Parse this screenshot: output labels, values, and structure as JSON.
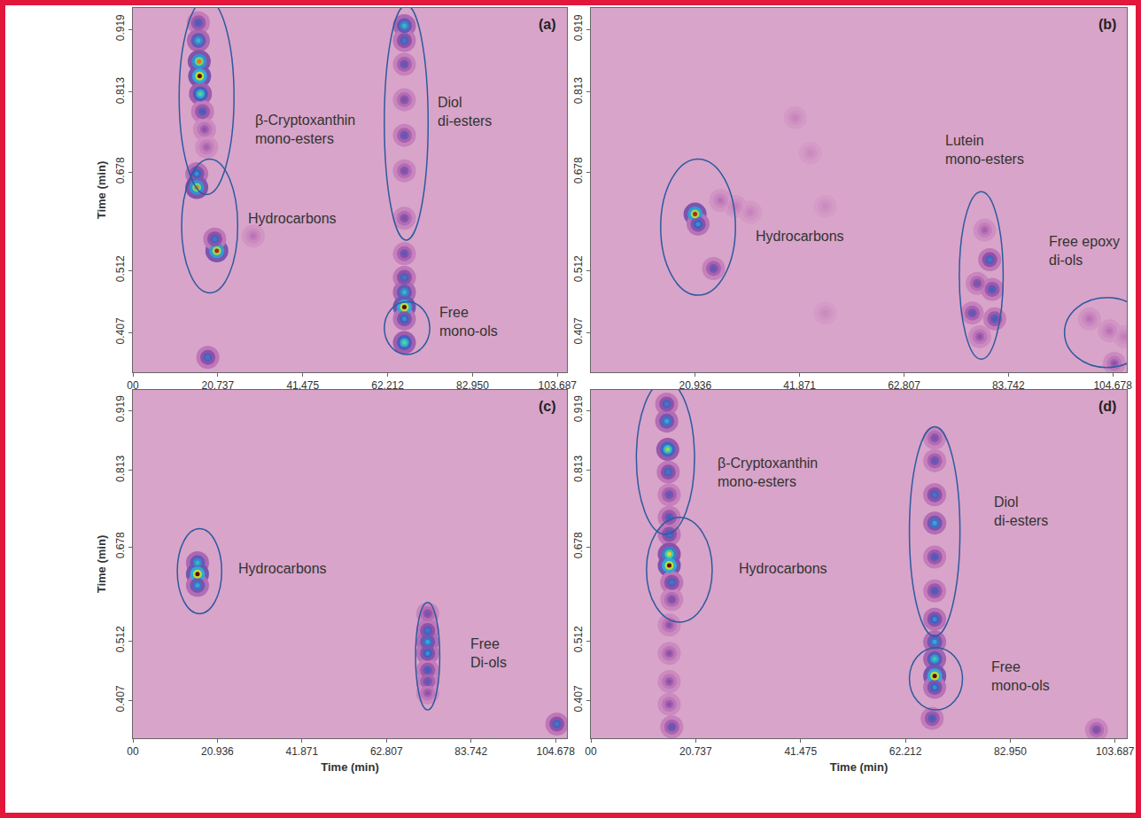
{
  "chart_data": [
    {
      "type": "scatter",
      "title": "(a)",
      "y_label": "Time (min)",
      "xlim": [
        0,
        106
      ],
      "xticks": [
        {
          "value": 0,
          "label": "00"
        },
        20.737,
        41.475,
        62.212,
        {
          "value": 82.95,
          "label": "82.950"
        },
        103.687
      ],
      "ylim": [
        0.34,
        0.955
      ],
      "yticks": [
        0.407,
        0.512,
        0.678,
        0.813,
        0.919
      ],
      "grid": false,
      "zlim": [
        0,
        100
      ],
      "spots": {
        "x": [
          16,
          16,
          16.2,
          16.3,
          16.5,
          17,
          17.5,
          18,
          15.6,
          15.6,
          20.5,
          20,
          18.3,
          29.4,
          66.3,
          66.3,
          66.3,
          66.3,
          66.3,
          66.3,
          66.3,
          66.3,
          66.3,
          66.3,
          66.3,
          66.3,
          66.3
        ],
        "y": [
          0.93,
          0.9,
          0.865,
          0.84,
          0.81,
          0.78,
          0.75,
          0.72,
          0.675,
          0.652,
          0.545,
          0.565,
          0.365,
          0.57,
          0.925,
          0.9,
          0.86,
          0.8,
          0.74,
          0.68,
          0.6,
          0.54,
          0.5,
          0.475,
          0.45,
          0.43,
          0.39
        ],
        "z": [
          40,
          60,
          90,
          100,
          70,
          40,
          25,
          20,
          50,
          90,
          95,
          45,
          45,
          15,
          60,
          45,
          35,
          30,
          35,
          30,
          30,
          35,
          45,
          60,
          100,
          50,
          70
        ]
      },
      "regions": [
        {
          "label": "β-Cryptoxanthin mono-esters",
          "x": [
            11.3,
            24.7
          ],
          "y": [
            0.64,
            0.97
          ],
          "label_x": 42,
          "label_y": 0.75
        },
        {
          "label": "Hydrocarbons",
          "x": [
            11.9,
            25.6
          ],
          "y": [
            0.474,
            0.7
          ],
          "label_x": 39,
          "label_y": 0.6
        },
        {
          "label": "Diol di-esters",
          "x": [
            61.4,
            72.1
          ],
          "y": [
            0.563,
            0.96
          ],
          "label_x": 81,
          "label_y": 0.78
        },
        {
          "label": "Free mono-ols",
          "x": [
            61.4,
            72.5
          ],
          "y": [
            0.37,
            0.459
          ],
          "label_x": 82,
          "label_y": 0.425
        }
      ]
    },
    {
      "type": "scatter",
      "title": "(b)",
      "xlim": [
        0,
        107.5
      ],
      "xticks": [
        20.936,
        41.871,
        62.807,
        83.742,
        104.678
      ],
      "ylim": [
        0.34,
        0.955
      ],
      "yticks": [
        0.407,
        0.512,
        0.678,
        0.813,
        0.919
      ],
      "grid": false,
      "zlim": [
        0,
        100
      ],
      "spots": {
        "x": [
          20.9,
          21.5,
          24.6,
          26,
          29,
          32,
          41,
          44,
          47,
          47,
          76.5,
          77.5,
          80,
          80.5,
          81,
          79,
          78,
          100,
          104,
          107,
          105
        ],
        "y": [
          0.607,
          0.59,
          0.515,
          0.63,
          0.62,
          0.61,
          0.77,
          0.71,
          0.62,
          0.44,
          0.44,
          0.49,
          0.53,
          0.48,
          0.43,
          0.58,
          0.4,
          0.43,
          0.41,
          0.4,
          0.355
        ],
        "z": [
          95,
          50,
          35,
          15,
          12,
          10,
          10,
          8,
          8,
          8,
          35,
          30,
          45,
          40,
          40,
          20,
          25,
          15,
          15,
          12,
          25
        ]
      },
      "regions": [
        {
          "label": "Hydrocarbons",
          "x": [
            14,
            29
          ],
          "y": [
            0.47,
            0.7
          ],
          "label_x": 42,
          "label_y": 0.57
        },
        {
          "label": "Lutein mono-esters",
          "x": [
            73.9,
            82.7
          ],
          "y": [
            0.362,
            0.645
          ],
          "label_x": 79,
          "label_y": 0.715
        },
        {
          "label": "Free epoxy di-ols",
          "x": [
            95,
            112
          ],
          "y": [
            0.348,
            0.466
          ],
          "label_x": 99,
          "label_y": 0.545
        }
      ]
    },
    {
      "type": "scatter",
      "title": "(c)",
      "x_label": "Time (min)",
      "y_label": "Time (min)",
      "xlim": [
        0,
        107.5
      ],
      "xticks": [
        {
          "value": 0,
          "label": "00"
        },
        20.936,
        41.871,
        62.807,
        83.742,
        104.678
      ],
      "ylim": [
        0.34,
        0.955
      ],
      "yticks": [
        0.407,
        0.512,
        0.678,
        0.813,
        0.919
      ],
      "grid": false,
      "zlim": [
        0,
        100
      ],
      "spots": {
        "x": [
          16,
          16,
          16,
          73,
          73,
          73,
          73,
          73,
          73,
          73,
          105
        ],
        "y": [
          0.65,
          0.63,
          0.61,
          0.56,
          0.53,
          0.51,
          0.49,
          0.46,
          0.44,
          0.42,
          0.365
        ],
        "z": [
          60,
          100,
          55,
          30,
          45,
          55,
          50,
          40,
          35,
          25,
          45
        ]
      },
      "regions": [
        {
          "label": "Hydrocarbons",
          "x": [
            11,
            22
          ],
          "y": [
            0.56,
            0.71
          ],
          "label_x": 37,
          "label_y": 0.64
        },
        {
          "label": "Free Di-ols",
          "x": [
            70,
            76
          ],
          "y": [
            0.39,
            0.58
          ],
          "label_x": 88,
          "label_y": 0.49
        }
      ]
    },
    {
      "type": "scatter",
      "title": "(d)",
      "x_label": "Time (min)",
      "xlim": [
        0,
        106
      ],
      "xticks": [
        {
          "value": 0,
          "label": "00"
        },
        20.737,
        41.475,
        62.212,
        {
          "value": 82.95,
          "label": "82.950"
        },
        103.687
      ],
      "ylim": [
        0.34,
        0.955
      ],
      "yticks": [
        0.407,
        0.512,
        0.678,
        0.813,
        0.919
      ],
      "grid": false,
      "zlim": [
        0,
        100
      ],
      "spots": {
        "x": [
          15,
          15,
          15.2,
          15.3,
          15.5,
          15.5,
          15.5,
          15.5,
          15.5,
          16,
          16,
          15.5,
          15.5,
          15.5,
          15.5,
          16,
          68,
          68,
          68,
          68,
          68,
          68,
          68,
          68,
          68,
          68,
          68,
          67.5,
          100
        ],
        "y": [
          0.93,
          0.9,
          0.85,
          0.81,
          0.77,
          0.73,
          0.7,
          0.665,
          0.645,
          0.615,
          0.585,
          0.54,
          0.49,
          0.44,
          0.4,
          0.36,
          0.87,
          0.83,
          0.77,
          0.72,
          0.66,
          0.6,
          0.55,
          0.51,
          0.48,
          0.45,
          0.43,
          0.375,
          0.355
        ],
        "z": [
          45,
          55,
          75,
          45,
          35,
          40,
          45,
          85,
          100,
          45,
          30,
          25,
          25,
          25,
          25,
          35,
          30,
          35,
          45,
          55,
          40,
          40,
          50,
          55,
          65,
          100,
          50,
          40,
          30
        ]
      },
      "regions": [
        {
          "label": "β-Cryptoxanthin mono-esters",
          "x": [
            9,
            20.5
          ],
          "y": [
            0.7,
            0.97
          ],
          "label_x": 35,
          "label_y": 0.81
        },
        {
          "label": "Hydrocarbons",
          "x": [
            11,
            24
          ],
          "y": [
            0.545,
            0.73
          ],
          "label_x": 38,
          "label_y": 0.64
        },
        {
          "label": "Diol di-esters",
          "x": [
            63,
            73
          ],
          "y": [
            0.52,
            0.89
          ],
          "label_x": 85,
          "label_y": 0.74
        },
        {
          "label": "Free mono-ols",
          "x": [
            63,
            73.5
          ],
          "y": [
            0.39,
            0.5
          ],
          "label_x": 85,
          "label_y": 0.45
        }
      ]
    }
  ]
}
